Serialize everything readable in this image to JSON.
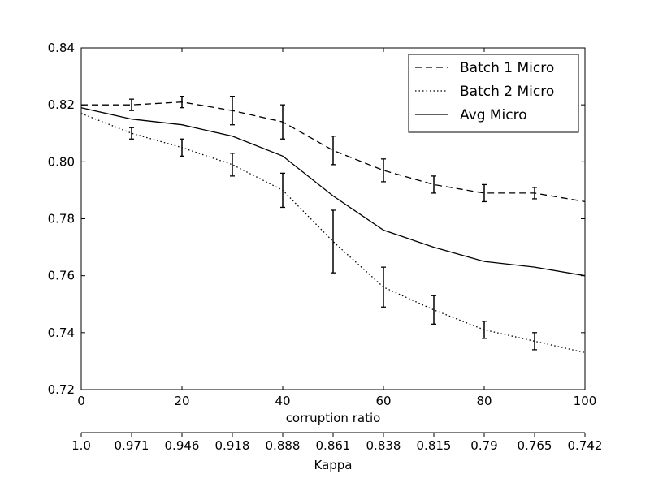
{
  "chart_data": {
    "type": "line",
    "xlabel": "corruption ratio",
    "x2label": "Kappa",
    "xlim": [
      0,
      100
    ],
    "ylim": [
      0.72,
      0.84
    ],
    "x_ticks": [
      0,
      20,
      40,
      60,
      80,
      100
    ],
    "x_tick_labels": [
      "0",
      "20",
      "40",
      "60",
      "80",
      "100"
    ],
    "y_ticks": [
      0.72,
      0.74,
      0.76,
      0.78,
      0.8,
      0.82,
      0.84
    ],
    "y_tick_labels": [
      "0.72",
      "0.74",
      "0.76",
      "0.78",
      "0.80",
      "0.82",
      "0.84"
    ],
    "x2_ticks": [
      0,
      10,
      20,
      30,
      40,
      50,
      60,
      70,
      80,
      90,
      100
    ],
    "x2_tick_labels": [
      "1.0",
      "0.971",
      "0.946",
      "0.918",
      "0.888",
      "0.861",
      "0.838",
      "0.815",
      "0.79",
      "0.765",
      "0.742"
    ],
    "legend_position": "top-right",
    "series": [
      {
        "name": "Batch 1 Micro",
        "style": "dashed",
        "color": "#000000",
        "x": [
          0,
          10,
          20,
          30,
          40,
          50,
          60,
          70,
          80,
          90,
          100
        ],
        "y": [
          0.82,
          0.82,
          0.821,
          0.818,
          0.814,
          0.804,
          0.797,
          0.792,
          0.789,
          0.789,
          0.786
        ],
        "error": [
          null,
          [
            0.818,
            0.822
          ],
          [
            0.819,
            0.823
          ],
          [
            0.813,
            0.823
          ],
          [
            0.808,
            0.82
          ],
          [
            0.799,
            0.809
          ],
          [
            0.793,
            0.801
          ],
          [
            0.789,
            0.795
          ],
          [
            0.786,
            0.792
          ],
          [
            0.787,
            0.791
          ],
          null
        ]
      },
      {
        "name": "Batch 2 Micro",
        "style": "dotted",
        "color": "#000000",
        "x": [
          0,
          10,
          20,
          30,
          40,
          50,
          60,
          70,
          80,
          90,
          100
        ],
        "y": [
          0.817,
          0.81,
          0.805,
          0.799,
          0.79,
          0.772,
          0.756,
          0.748,
          0.741,
          0.737,
          0.733
        ],
        "error": [
          null,
          [
            0.808,
            0.812
          ],
          [
            0.802,
            0.808
          ],
          [
            0.795,
            0.803
          ],
          [
            0.784,
            0.796
          ],
          [
            0.761,
            0.783
          ],
          [
            0.749,
            0.763
          ],
          [
            0.743,
            0.753
          ],
          [
            0.738,
            0.744
          ],
          [
            0.734,
            0.74
          ],
          null
        ]
      },
      {
        "name": "Avg Micro",
        "style": "solid",
        "color": "#000000",
        "x": [
          0,
          10,
          20,
          30,
          40,
          50,
          60,
          70,
          80,
          90,
          100
        ],
        "y": [
          0.819,
          0.815,
          0.813,
          0.809,
          0.802,
          0.788,
          0.776,
          0.77,
          0.765,
          0.763,
          0.76
        ],
        "error": null
      }
    ]
  }
}
